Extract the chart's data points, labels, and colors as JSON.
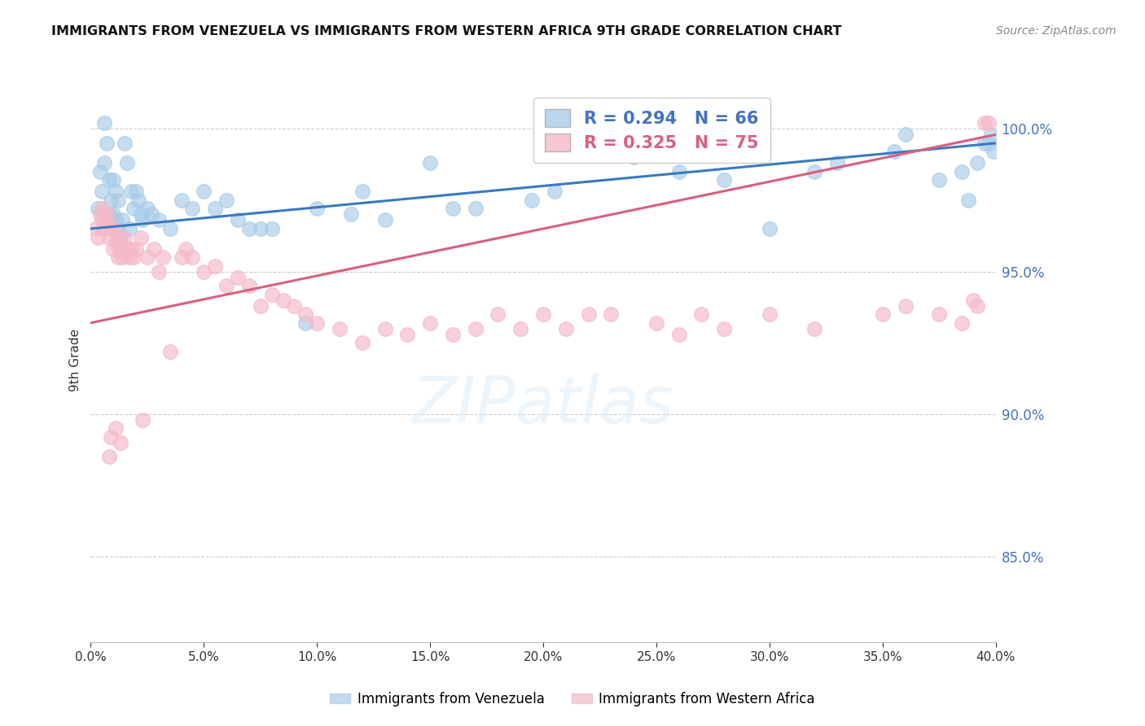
{
  "title": "IMMIGRANTS FROM VENEZUELA VS IMMIGRANTS FROM WESTERN AFRICA 9TH GRADE CORRELATION CHART",
  "source": "Source: ZipAtlas.com",
  "ylabel": "9th Grade",
  "xmin": 0.0,
  "xmax": 40.0,
  "ymin": 82.0,
  "ymax": 101.8,
  "yticks": [
    85.0,
    90.0,
    95.0,
    100.0
  ],
  "xticks": [
    0.0,
    5.0,
    10.0,
    15.0,
    20.0,
    25.0,
    30.0,
    35.0,
    40.0
  ],
  "blue_R": 0.294,
  "blue_N": 66,
  "pink_R": 0.325,
  "pink_N": 75,
  "blue_color": "#a8cce8",
  "pink_color": "#f5b8c8",
  "blue_line_color": "#3a7abf",
  "pink_line_color": "#d95f7f",
  "legend_label_blue": "Immigrants from Venezuela",
  "legend_label_pink": "Immigrants from Western Africa",
  "blue_line_x0": 0.0,
  "blue_line_y0": 96.5,
  "blue_line_x1": 40.0,
  "blue_line_y1": 99.5,
  "pink_line_x0": 0.0,
  "pink_line_y0": 93.2,
  "pink_line_x1": 40.0,
  "pink_line_y1": 99.8,
  "blue_x": [
    0.3,
    0.4,
    0.5,
    0.6,
    0.6,
    0.7,
    0.8,
    0.8,
    0.9,
    1.0,
    1.0,
    1.1,
    1.1,
    1.2,
    1.2,
    1.3,
    1.4,
    1.5,
    1.6,
    1.7,
    1.8,
    1.9,
    2.0,
    2.1,
    2.2,
    2.3,
    2.5,
    2.7,
    3.0,
    3.5,
    4.0,
    4.5,
    5.0,
    5.5,
    6.0,
    6.5,
    7.5,
    8.0,
    9.5,
    10.0,
    11.5,
    13.0,
    15.0,
    17.0,
    19.5,
    22.0,
    26.0,
    30.0,
    33.0,
    36.0,
    38.5,
    39.2,
    39.5,
    39.7,
    39.8,
    39.9,
    7.0,
    12.0,
    16.0,
    20.5,
    24.0,
    28.0,
    32.0,
    35.5,
    37.5,
    38.8
  ],
  "blue_y": [
    97.2,
    98.5,
    97.8,
    100.2,
    98.8,
    99.5,
    98.2,
    97.0,
    97.5,
    97.0,
    98.2,
    96.8,
    97.8,
    96.5,
    97.5,
    96.2,
    96.8,
    99.5,
    98.8,
    96.5,
    97.8,
    97.2,
    97.8,
    97.5,
    97.0,
    96.8,
    97.2,
    97.0,
    96.8,
    96.5,
    97.5,
    97.2,
    97.8,
    97.2,
    97.5,
    96.8,
    96.5,
    96.5,
    93.2,
    97.2,
    97.0,
    96.8,
    98.8,
    97.2,
    97.5,
    99.2,
    98.5,
    96.5,
    98.8,
    99.8,
    98.5,
    98.8,
    99.5,
    99.5,
    99.8,
    99.2,
    96.5,
    97.8,
    97.2,
    97.8,
    99.0,
    98.2,
    98.5,
    99.2,
    98.2,
    97.5
  ],
  "pink_x": [
    0.2,
    0.3,
    0.4,
    0.5,
    0.5,
    0.6,
    0.7,
    0.7,
    0.8,
    0.9,
    1.0,
    1.0,
    1.1,
    1.2,
    1.2,
    1.3,
    1.4,
    1.5,
    1.6,
    1.7,
    1.8,
    1.9,
    2.0,
    2.2,
    2.5,
    2.8,
    3.0,
    3.2,
    3.5,
    4.0,
    4.2,
    4.5,
    5.0,
    5.5,
    6.0,
    6.5,
    7.0,
    7.5,
    8.0,
    8.5,
    9.0,
    9.5,
    10.0,
    11.0,
    12.0,
    13.0,
    14.0,
    15.0,
    16.0,
    17.0,
    18.0,
    19.0,
    20.0,
    21.0,
    23.0,
    25.0,
    26.0,
    27.0,
    28.0,
    30.0,
    32.0,
    35.0,
    36.0,
    37.5,
    38.5,
    39.0,
    39.2,
    39.5,
    39.7,
    22.0,
    0.8,
    1.3,
    1.1,
    0.9,
    2.3
  ],
  "pink_y": [
    96.5,
    96.2,
    97.0,
    96.8,
    97.2,
    96.5,
    96.8,
    97.0,
    96.2,
    96.5,
    95.8,
    96.5,
    96.0,
    95.5,
    96.2,
    95.8,
    95.5,
    96.2,
    95.8,
    95.5,
    95.8,
    95.5,
    95.8,
    96.2,
    95.5,
    95.8,
    95.0,
    95.5,
    92.2,
    95.5,
    95.8,
    95.5,
    95.0,
    95.2,
    94.5,
    94.8,
    94.5,
    93.8,
    94.2,
    94.0,
    93.8,
    93.5,
    93.2,
    93.0,
    92.5,
    93.0,
    92.8,
    93.2,
    92.8,
    93.0,
    93.5,
    93.0,
    93.5,
    93.0,
    93.5,
    93.2,
    92.8,
    93.5,
    93.0,
    93.5,
    93.0,
    93.5,
    93.8,
    93.5,
    93.2,
    94.0,
    93.8,
    100.2,
    100.2,
    93.5,
    88.5,
    89.0,
    89.5,
    89.2,
    89.8
  ]
}
